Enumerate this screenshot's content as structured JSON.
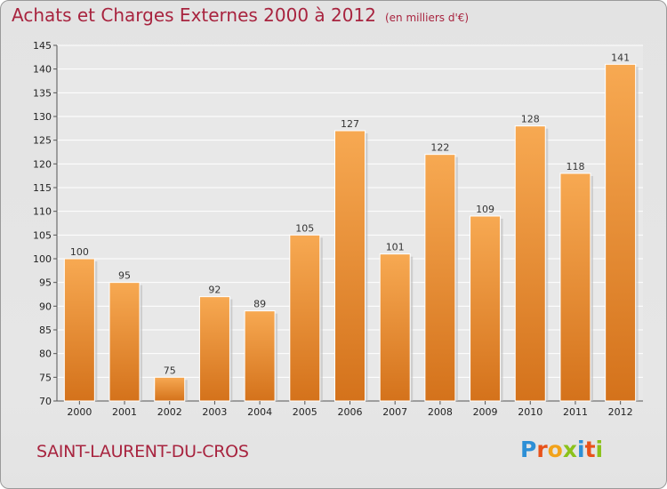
{
  "header": {
    "title": "Achats et Charges Externes 2000 à 2012",
    "subtitle": "(en milliers d'€)"
  },
  "footer": {
    "commune": "SAINT-LAURENT-DU-CROS",
    "logo_text": "Proxiti"
  },
  "colors": {
    "title": "#a8243f",
    "bar_light": "#f7a952",
    "bar_dark": "#d4721b",
    "background": "#e5e5e5"
  },
  "chart_data": {
    "type": "bar",
    "title": "Achats et Charges Externes 2000 à 2012",
    "subtitle": "(en milliers d'€)",
    "categories": [
      "2000",
      "2001",
      "2002",
      "2003",
      "2004",
      "2005",
      "2006",
      "2007",
      "2008",
      "2009",
      "2010",
      "2011",
      "2012"
    ],
    "values": [
      100,
      95,
      75,
      92,
      89,
      105,
      127,
      101,
      122,
      109,
      128,
      118,
      141
    ],
    "ylim": [
      70,
      145
    ],
    "yticks": [
      70,
      75,
      80,
      85,
      90,
      95,
      100,
      105,
      110,
      115,
      120,
      125,
      130,
      135,
      140,
      145
    ],
    "grid": true,
    "legend": "none"
  }
}
